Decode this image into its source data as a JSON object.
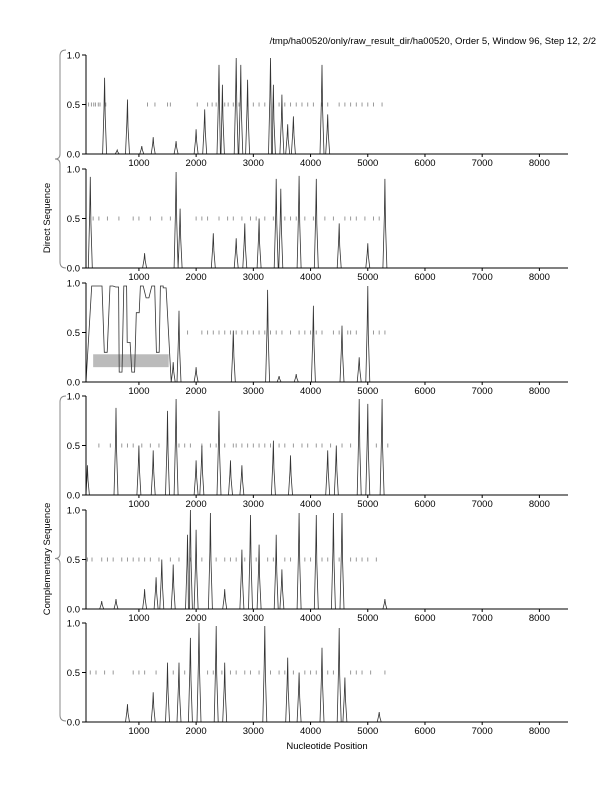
{
  "chart_data": {
    "type": "line",
    "title": "/tmp/ha00520/only/raw_result_dir/ha00520, Order 5, Window 96, Step 12, 2/2",
    "xlabel": "Nucleotide Position",
    "group_labels": [
      "Direct Sequence",
      "Complementary Sequence"
    ],
    "xlim": [
      75,
      8500
    ],
    "ylim": [
      0,
      1
    ],
    "x_ticks": [
      1000,
      2000,
      3000,
      4000,
      5000,
      6000,
      7000,
      8000
    ],
    "y_ticks": [
      "0.0",
      "0.5",
      "1.0"
    ],
    "colors": {
      "line": "#333333",
      "marks": "#999999",
      "box": "#bbbbbb"
    },
    "panels": [
      {
        "group": "Direct",
        "peaks": [
          [
            400,
            0.77
          ],
          [
            620,
            0.04
          ],
          [
            800,
            0.55
          ],
          [
            1050,
            0.08
          ],
          [
            1250,
            0.17
          ],
          [
            1650,
            0.13
          ],
          [
            2000,
            0.25
          ],
          [
            2150,
            0.45
          ],
          [
            2400,
            0.9
          ],
          [
            2460,
            0.7
          ],
          [
            2700,
            0.97
          ],
          [
            2780,
            0.9
          ],
          [
            2900,
            0.75
          ],
          [
            3300,
            0.97
          ],
          [
            3350,
            0.7
          ],
          [
            3500,
            0.6
          ],
          [
            3600,
            0.3
          ],
          [
            3700,
            0.38
          ],
          [
            4200,
            0.9
          ],
          [
            4300,
            0.4
          ]
        ],
        "marks": [
          120,
          170,
          210,
          240,
          290,
          320,
          420,
          1150,
          1280,
          1500,
          1550,
          2020,
          2200,
          2280,
          2350,
          2500,
          2560,
          2650,
          2750,
          2900,
          3000,
          3100,
          3200,
          3350,
          3450,
          3550,
          3650,
          3750,
          3850,
          3950,
          4050,
          4200,
          4300,
          4500,
          4600,
          4700,
          4800,
          4900,
          5000,
          5100,
          5250
        ]
      },
      {
        "group": "Direct",
        "peaks": [
          [
            150,
            0.92
          ],
          [
            1100,
            0.15
          ],
          [
            1650,
            0.97
          ],
          [
            1720,
            0.6
          ],
          [
            2300,
            0.35
          ],
          [
            2700,
            0.3
          ],
          [
            2850,
            0.45
          ],
          [
            3100,
            0.5
          ],
          [
            3400,
            0.9
          ],
          [
            3480,
            0.8
          ],
          [
            3800,
            0.93
          ],
          [
            4100,
            0.9
          ],
          [
            4500,
            0.45
          ],
          [
            5000,
            0.25
          ],
          [
            5300,
            0.9
          ]
        ],
        "marks": [
          200,
          300,
          450,
          650,
          900,
          1000,
          1200,
          1400,
          1550,
          2000,
          2100,
          2200,
          2400,
          2550,
          2650,
          2800,
          2950,
          3050,
          3200,
          3350,
          3550,
          3650,
          3750,
          3900,
          4050,
          4250,
          4400,
          4600,
          4700,
          4800,
          4950,
          5100,
          5200
        ]
      },
      {
        "group": "Direct",
        "peaks": [
          [
            200,
            0.97
          ],
          [
            330,
            0.97
          ],
          [
            420,
            0.3
          ],
          [
            520,
            0.97
          ],
          [
            620,
            0.96
          ],
          [
            680,
            0.1
          ],
          [
            760,
            0.97
          ],
          [
            820,
            0.4
          ],
          [
            900,
            0.1
          ],
          [
            980,
            0.7
          ],
          [
            1050,
            0.97
          ],
          [
            1150,
            0.85
          ],
          [
            1250,
            0.97
          ],
          [
            1330,
            0.3
          ],
          [
            1400,
            0.97
          ],
          [
            1450,
            0.95
          ],
          [
            1600,
            0.2
          ],
          [
            1700,
            0.72
          ],
          [
            2000,
            0.15
          ],
          [
            2650,
            0.52
          ],
          [
            3250,
            0.93
          ],
          [
            3450,
            0.06
          ],
          [
            3750,
            0.08
          ],
          [
            4050,
            0.77
          ],
          [
            4550,
            0.57
          ],
          [
            4850,
            0.25
          ],
          [
            5000,
            0.97
          ]
        ],
        "plateau": [
          200,
          1480
        ],
        "box": {
          "x": [
            200,
            1520
          ],
          "y": [
            0.15,
            0.28
          ]
        },
        "marks": [
          1700,
          1850,
          2100,
          2200,
          2300,
          2400,
          2500,
          2600,
          2700,
          2800,
          2900,
          3000,
          3100,
          3200,
          3300,
          3400,
          3500,
          3650,
          3800,
          3900,
          4000,
          4100,
          4200,
          4400,
          4500,
          4650,
          4700,
          4800,
          5100,
          5200,
          5300
        ]
      },
      {
        "group": "Complementary",
        "peaks": [
          [
            100,
            0.3
          ],
          [
            600,
            0.88
          ],
          [
            1000,
            0.5
          ],
          [
            1250,
            0.45
          ],
          [
            1500,
            0.85
          ],
          [
            1650,
            0.97
          ],
          [
            2000,
            0.35
          ],
          [
            2100,
            0.5
          ],
          [
            2400,
            0.85
          ],
          [
            2600,
            0.35
          ],
          [
            2800,
            0.3
          ],
          [
            3350,
            0.55
          ],
          [
            3650,
            0.4
          ],
          [
            4300,
            0.45
          ],
          [
            4450,
            0.5
          ],
          [
            4850,
            0.97
          ],
          [
            5000,
            0.92
          ],
          [
            5250,
            0.97
          ]
        ],
        "marks": [
          300,
          500,
          700,
          800,
          900,
          1050,
          1200,
          1350,
          1700,
          1800,
          1900,
          2100,
          2250,
          2350,
          2500,
          2650,
          2700,
          2800,
          2900,
          3000,
          3100,
          3200,
          3300,
          3450,
          3550,
          3700,
          3850,
          3950,
          4100,
          4200,
          4350,
          4550,
          4700,
          5150,
          5350
        ]
      },
      {
        "group": "Complementary",
        "peaks": [
          [
            350,
            0.08
          ],
          [
            600,
            0.1
          ],
          [
            1100,
            0.2
          ],
          [
            1300,
            0.32
          ],
          [
            1400,
            0.5
          ],
          [
            1600,
            0.45
          ],
          [
            1850,
            0.75
          ],
          [
            1900,
            1.0
          ],
          [
            2000,
            0.8
          ],
          [
            2250,
            0.97
          ],
          [
            2500,
            0.2
          ],
          [
            2800,
            0.6
          ],
          [
            2950,
            0.95
          ],
          [
            3100,
            0.65
          ],
          [
            3400,
            0.75
          ],
          [
            3500,
            0.4
          ],
          [
            3800,
            0.97
          ],
          [
            4100,
            0.95
          ],
          [
            4400,
            0.97
          ],
          [
            4550,
            0.97
          ],
          [
            5300,
            0.1
          ]
        ],
        "marks": [
          100,
          180,
          350,
          450,
          550,
          700,
          800,
          900,
          1000,
          1100,
          1200,
          1350,
          1550,
          1700,
          1900,
          2100,
          2350,
          2500,
          2600,
          2700,
          2850,
          3050,
          3250,
          3350,
          3550,
          3650,
          3900,
          4000,
          4200,
          4300,
          4500,
          4700,
          4800,
          4900,
          5000,
          5150
        ]
      },
      {
        "group": "Complementary",
        "peaks": [
          [
            800,
            0.18
          ],
          [
            1250,
            0.3
          ],
          [
            1500,
            0.6
          ],
          [
            1700,
            0.6
          ],
          [
            1900,
            0.85
          ],
          [
            2050,
            1.0
          ],
          [
            2350,
            0.97
          ],
          [
            2500,
            0.6
          ],
          [
            3200,
            0.97
          ],
          [
            3600,
            0.65
          ],
          [
            3800,
            0.5
          ],
          [
            4200,
            0.75
          ],
          [
            4500,
            0.95
          ],
          [
            4600,
            0.45
          ],
          [
            5200,
            0.1
          ]
        ],
        "marks": [
          150,
          250,
          400,
          550,
          900,
          1000,
          1100,
          1300,
          1600,
          1800,
          2200,
          2300,
          2450,
          2600,
          2700,
          2850,
          2950,
          3100,
          3300,
          3450,
          3550,
          3700,
          3900,
          4000,
          4100,
          4300,
          4400,
          4700,
          4800,
          4900,
          5050,
          5300
        ]
      }
    ]
  }
}
